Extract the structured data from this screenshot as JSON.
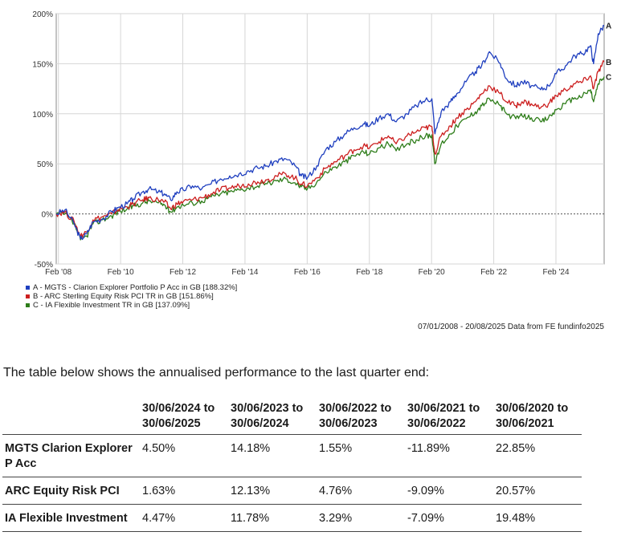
{
  "chart_data": {
    "type": "line",
    "y_ticks": [
      "200%",
      "150%",
      "100%",
      "50%",
      "0%",
      "-50%"
    ],
    "y_tick_values": [
      200,
      150,
      100,
      50,
      0,
      -50
    ],
    "ylim": [
      -50,
      200
    ],
    "x_ticks": [
      "Feb '08",
      "Feb '10",
      "Feb '12",
      "Feb '14",
      "Feb '16",
      "Feb '18",
      "Feb '20",
      "Feb '22",
      "Feb '24"
    ],
    "x_tick_years": [
      2008.09,
      2010.09,
      2012.09,
      2014.09,
      2016.09,
      2018.09,
      2020.09,
      2022.09,
      2024.09
    ],
    "xlim": [
      2008.02,
      2025.64
    ],
    "grid": true,
    "series": [
      {
        "name": "A - MGTS - Clarion Explorer Portfolio P Acc in GB [188.32%]",
        "end_label": "A",
        "color": "#1f3fbf",
        "x": [
          2008.02,
          2008.3,
          2008.6,
          2008.8,
          2009.0,
          2009.2,
          2009.5,
          2009.8,
          2010.0,
          2010.3,
          2010.5,
          2010.8,
          2011.0,
          2011.3,
          2011.5,
          2011.7,
          2011.9,
          2012.1,
          2012.4,
          2012.7,
          2013.0,
          2013.3,
          2013.6,
          2013.9,
          2014.2,
          2014.5,
          2014.8,
          2015.1,
          2015.4,
          2015.7,
          2015.9,
          2016.1,
          2016.4,
          2016.7,
          2017.0,
          2017.3,
          2017.6,
          2017.9,
          2018.1,
          2018.4,
          2018.7,
          2018.95,
          2019.3,
          2019.6,
          2019.9,
          2020.1,
          2020.2,
          2020.4,
          2020.7,
          2020.9,
          2021.2,
          2021.5,
          2021.7,
          2021.95,
          2022.3,
          2022.5,
          2022.8,
          2023.0,
          2023.3,
          2023.6,
          2023.85,
          2024.1,
          2024.4,
          2024.7,
          2024.95,
          2025.2,
          2025.3,
          2025.45,
          2025.64
        ],
        "y": [
          0,
          4,
          -10,
          -25,
          -20,
          -8,
          -5,
          2,
          6,
          10,
          15,
          22,
          25,
          22,
          20,
          14,
          22,
          24,
          28,
          25,
          30,
          35,
          38,
          40,
          43,
          46,
          48,
          53,
          55,
          48,
          38,
          36,
          48,
          65,
          72,
          80,
          86,
          90,
          88,
          96,
          100,
          92,
          100,
          108,
          114,
          115,
          80,
          102,
          112,
          120,
          132,
          142,
          148,
          162,
          150,
          135,
          128,
          132,
          128,
          124,
          128,
          140,
          148,
          158,
          160,
          168,
          150,
          180,
          188.32
        ]
      },
      {
        "name": "B - ARC Sterling Equity Risk PCI TR in GB [151.86%]",
        "end_label": "B",
        "color": "#cc1f1f",
        "x": [
          2008.02,
          2008.3,
          2008.6,
          2008.8,
          2009.0,
          2009.2,
          2009.5,
          2009.8,
          2010.0,
          2010.3,
          2010.5,
          2010.8,
          2011.0,
          2011.3,
          2011.5,
          2011.7,
          2011.9,
          2012.1,
          2012.4,
          2012.7,
          2013.0,
          2013.3,
          2013.6,
          2013.9,
          2014.2,
          2014.5,
          2014.8,
          2015.1,
          2015.4,
          2015.7,
          2015.9,
          2016.1,
          2016.4,
          2016.7,
          2017.0,
          2017.3,
          2017.6,
          2017.9,
          2018.1,
          2018.4,
          2018.7,
          2018.95,
          2019.3,
          2019.6,
          2019.9,
          2020.1,
          2020.2,
          2020.4,
          2020.7,
          2020.9,
          2021.2,
          2021.5,
          2021.7,
          2021.95,
          2022.3,
          2022.5,
          2022.8,
          2023.0,
          2023.3,
          2023.6,
          2023.85,
          2024.1,
          2024.4,
          2024.7,
          2024.95,
          2025.2,
          2025.3,
          2025.45,
          2025.64
        ],
        "y": [
          0,
          2,
          -8,
          -22,
          -18,
          -6,
          -3,
          0,
          4,
          7,
          10,
          14,
          16,
          14,
          12,
          5,
          10,
          12,
          14,
          16,
          20,
          24,
          26,
          28,
          30,
          32,
          34,
          38,
          40,
          36,
          30,
          28,
          36,
          46,
          52,
          58,
          64,
          68,
          66,
          72,
          78,
          70,
          78,
          82,
          86,
          87,
          60,
          78,
          88,
          96,
          104,
          112,
          120,
          128,
          120,
          112,
          108,
          112,
          110,
          106,
          110,
          118,
          124,
          130,
          132,
          138,
          125,
          142,
          151.86
        ]
      },
      {
        "name": "C - IA Flexible Investment TR in GB [137.09%]",
        "end_label": "C",
        "color": "#2e7d1a",
        "x": [
          2008.02,
          2008.3,
          2008.6,
          2008.8,
          2009.0,
          2009.2,
          2009.5,
          2009.8,
          2010.0,
          2010.3,
          2010.5,
          2010.8,
          2011.0,
          2011.3,
          2011.5,
          2011.7,
          2011.9,
          2012.1,
          2012.4,
          2012.7,
          2013.0,
          2013.3,
          2013.6,
          2013.9,
          2014.2,
          2014.5,
          2014.8,
          2015.1,
          2015.4,
          2015.7,
          2015.9,
          2016.1,
          2016.4,
          2016.7,
          2017.0,
          2017.3,
          2017.6,
          2017.9,
          2018.1,
          2018.4,
          2018.7,
          2018.95,
          2019.3,
          2019.6,
          2019.9,
          2020.1,
          2020.2,
          2020.4,
          2020.7,
          2020.9,
          2021.2,
          2021.5,
          2021.7,
          2021.95,
          2022.3,
          2022.5,
          2022.8,
          2023.0,
          2023.3,
          2023.6,
          2023.85,
          2024.1,
          2024.4,
          2024.7,
          2024.95,
          2025.2,
          2025.3,
          2025.45,
          2025.64
        ],
        "y": [
          0,
          0,
          -10,
          -26,
          -22,
          -10,
          -6,
          -2,
          2,
          5,
          8,
          11,
          13,
          11,
          9,
          2,
          7,
          9,
          11,
          13,
          17,
          20,
          22,
          24,
          26,
          28,
          30,
          33,
          35,
          31,
          27,
          25,
          32,
          42,
          47,
          52,
          58,
          62,
          60,
          66,
          70,
          63,
          70,
          74,
          78,
          79,
          50,
          70,
          80,
          88,
          95,
          102,
          108,
          115,
          108,
          100,
          95,
          98,
          96,
          92,
          96,
          104,
          110,
          116,
          118,
          124,
          112,
          130,
          137.09
        ]
      }
    ]
  },
  "source_note": "07/01/2008 - 20/08/2025 Data from FE fundinfo2025",
  "intro_text": "The table below shows the annualised performance to the last quarter end:",
  "table": {
    "headers": [
      {
        "line1": "30/06/2024 to",
        "line2": "30/06/2025"
      },
      {
        "line1": "30/06/2023 to",
        "line2": "30/06/2024"
      },
      {
        "line1": "30/06/2022 to",
        "line2": "30/06/2023"
      },
      {
        "line1": "30/06/2021 to",
        "line2": "30/06/2022"
      },
      {
        "line1": "30/06/2020 to",
        "line2": "30/06/2021"
      }
    ],
    "rows": [
      {
        "name": "MGTS Clarion Explorer P Acc",
        "values": [
          "4.50%",
          "14.18%",
          "1.55%",
          "-11.89%",
          "22.85%"
        ]
      },
      {
        "name": "ARC Equity Risk PCI",
        "values": [
          "1.63%",
          "12.13%",
          "4.76%",
          "-9.09%",
          "20.57%"
        ]
      },
      {
        "name": "IA Flexible Investment",
        "values": [
          "4.47%",
          "11.78%",
          "3.29%",
          "-7.09%",
          "19.48%"
        ]
      }
    ]
  }
}
